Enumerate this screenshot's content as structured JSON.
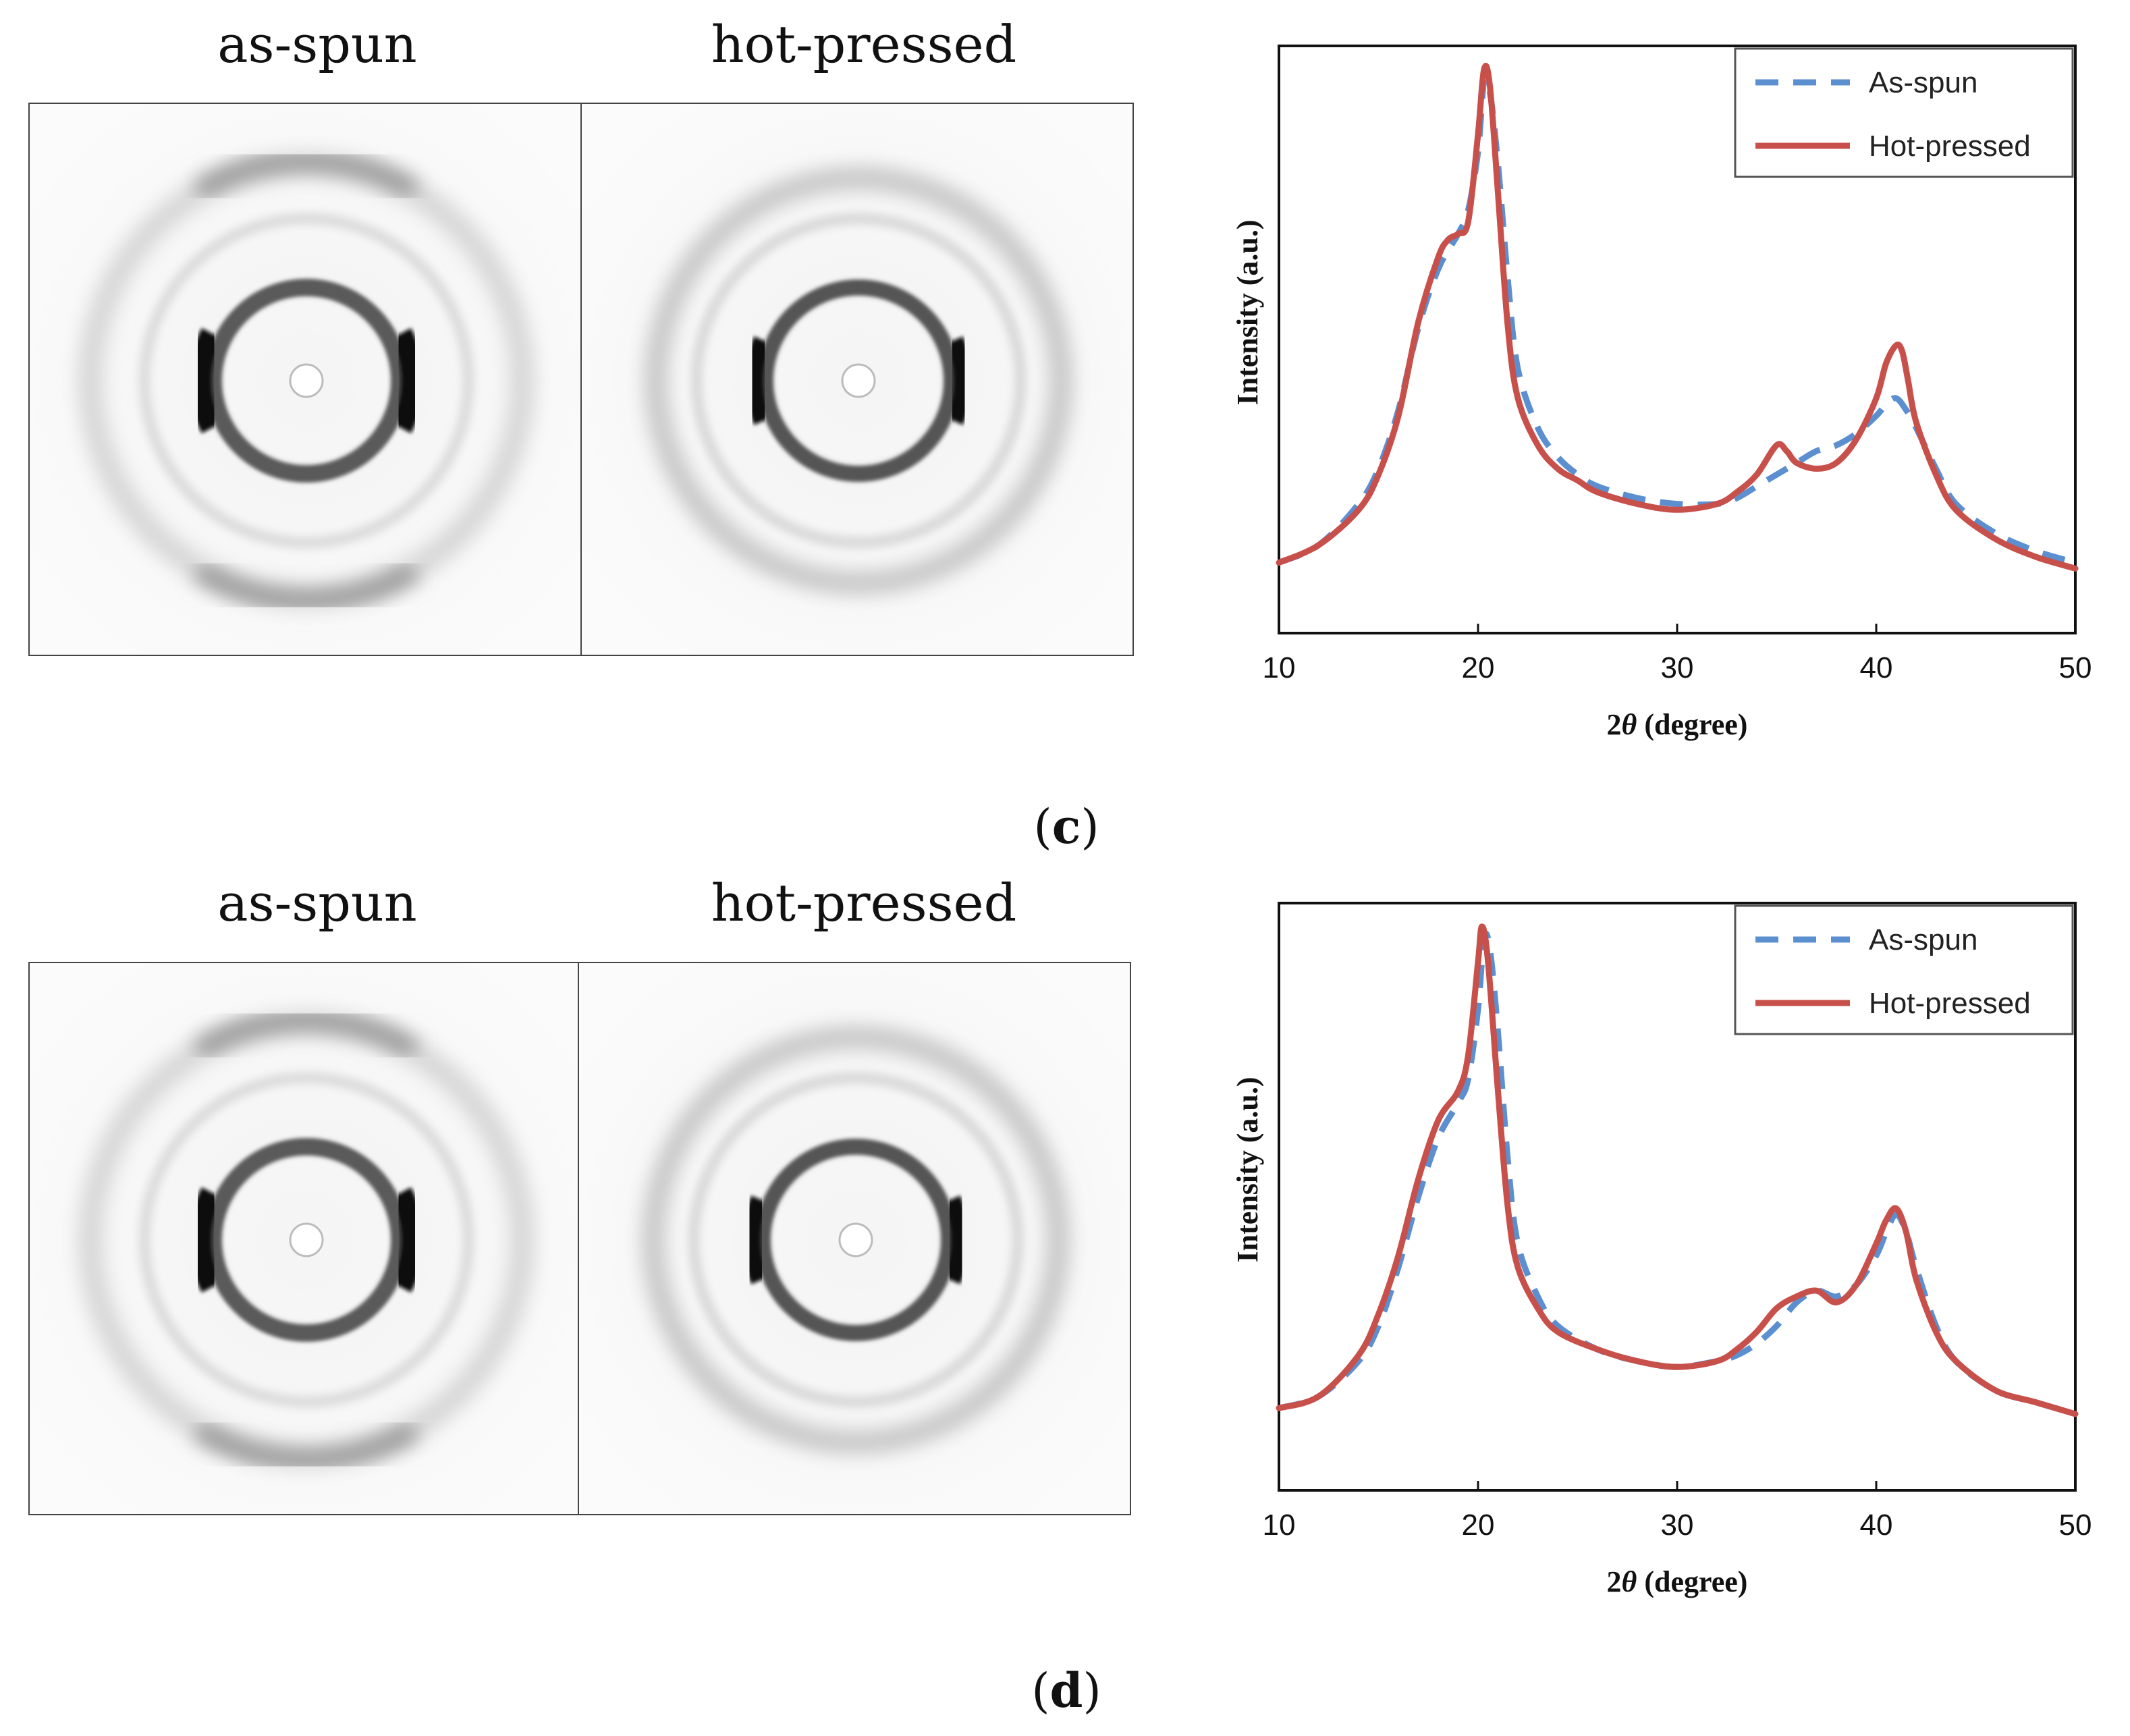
{
  "colors": {
    "as_spun": "#5b8fd0",
    "hot_pressed": "#c8504b",
    "axis": "#111111"
  },
  "panels": [
    {
      "id": "c",
      "label_open": "(",
      "label_letter": "c",
      "label_close": ")",
      "pattern_titles": [
        "as-spun",
        "hot-pressed"
      ]
    },
    {
      "id": "d",
      "label_open": "(",
      "label_letter": "d",
      "label_close": ")",
      "pattern_titles": [
        "as-spun",
        "hot-pressed"
      ]
    }
  ],
  "chart_data": [
    {
      "type": "line",
      "xlabel_prefix": "2",
      "xlabel_theta": "θ",
      "xlabel_suffix": " (degree)",
      "ylabel": "Intensity (a.u.)",
      "xlim": [
        10,
        50
      ],
      "ylim": [
        0,
        100
      ],
      "xticks": [
        "10",
        "20",
        "30",
        "40",
        "50"
      ],
      "legend_position": "top-right",
      "series": [
        {
          "name": "As-spun",
          "style": "dashed",
          "x": [
            10,
            12,
            14,
            15,
            16,
            17,
            18,
            19,
            19.5,
            20,
            20.3,
            20.6,
            21,
            21.5,
            22,
            23,
            24,
            25,
            26,
            28,
            30,
            32,
            33,
            34,
            35,
            36,
            37,
            38,
            39,
            40,
            40.5,
            41,
            41.5,
            42,
            43,
            44,
            46,
            48,
            50
          ],
          "y": [
            12,
            15,
            22,
            28,
            38,
            52,
            62,
            68,
            72,
            82,
            94,
            92,
            80,
            60,
            45,
            35,
            30,
            27,
            25,
            23,
            22,
            22,
            23,
            25,
            27,
            29,
            31,
            32,
            34,
            37,
            39,
            40,
            38,
            35,
            28,
            22,
            17,
            14,
            12
          ]
        },
        {
          "name": "Hot-pressed",
          "style": "solid",
          "x": [
            10,
            12,
            14,
            15,
            16,
            17,
            18,
            18.5,
            19,
            19.5,
            20,
            20.3,
            20.6,
            21,
            21.5,
            22,
            23,
            24,
            25,
            26,
            28,
            30,
            32,
            33,
            34,
            35,
            35.5,
            36,
            37,
            38,
            39,
            40,
            40.5,
            41,
            41.3,
            41.6,
            42,
            43,
            44,
            46,
            48,
            50
          ],
          "y": [
            12,
            15,
            21,
            27,
            37,
            53,
            64,
            67,
            68,
            70,
            85,
            96,
            93,
            75,
            52,
            40,
            32,
            28,
            26,
            24,
            22,
            21,
            22,
            24,
            27,
            32,
            31,
            29,
            28,
            29,
            33,
            40,
            46,
            49,
            48,
            43,
            36,
            27,
            21,
            16,
            13,
            11
          ]
        }
      ]
    },
    {
      "type": "line",
      "xlabel_prefix": "2",
      "xlabel_theta": "θ",
      "xlabel_suffix": " (degree)",
      "ylabel": "Intensity (a.u.)",
      "xlim": [
        10,
        50
      ],
      "ylim": [
        0,
        100
      ],
      "xticks": [
        "10",
        "20",
        "30",
        "40",
        "50"
      ],
      "legend_position": "top-right",
      "series": [
        {
          "name": "As-spun",
          "style": "dashed",
          "x": [
            10,
            12,
            14,
            15,
            16,
            17,
            18,
            19,
            19.5,
            20,
            20.3,
            20.6,
            21,
            21.5,
            22,
            23,
            24,
            26,
            28,
            30,
            32,
            33,
            34,
            35,
            36,
            37,
            38,
            39,
            40,
            40.5,
            41,
            41.5,
            42,
            43,
            44,
            46,
            48,
            50
          ],
          "y": [
            14,
            16,
            22,
            28,
            38,
            50,
            60,
            66,
            70,
            82,
            94,
            92,
            78,
            56,
            42,
            33,
            28,
            24,
            22,
            21,
            22,
            23,
            25,
            28,
            32,
            34,
            33,
            35,
            40,
            44,
            47,
            44,
            38,
            28,
            22,
            17,
            15,
            13
          ]
        },
        {
          "name": "Hot-pressed",
          "style": "solid",
          "x": [
            10,
            12,
            14,
            15,
            16,
            17,
            18,
            19,
            19.5,
            20,
            20.2,
            20.5,
            21,
            21.5,
            22,
            23,
            24,
            26,
            28,
            30,
            32,
            33,
            34,
            35,
            36,
            37,
            38,
            39,
            40,
            40.5,
            41,
            41.5,
            42,
            43,
            44,
            46,
            48,
            50
          ],
          "y": [
            14,
            16,
            23,
            30,
            40,
            53,
            63,
            68,
            74,
            90,
            96,
            90,
            68,
            48,
            38,
            31,
            27,
            24,
            22,
            21,
            22,
            24,
            27,
            31,
            33,
            34,
            32,
            35,
            42,
            46,
            48,
            44,
            36,
            27,
            22,
            17,
            15,
            13
          ]
        }
      ]
    }
  ]
}
